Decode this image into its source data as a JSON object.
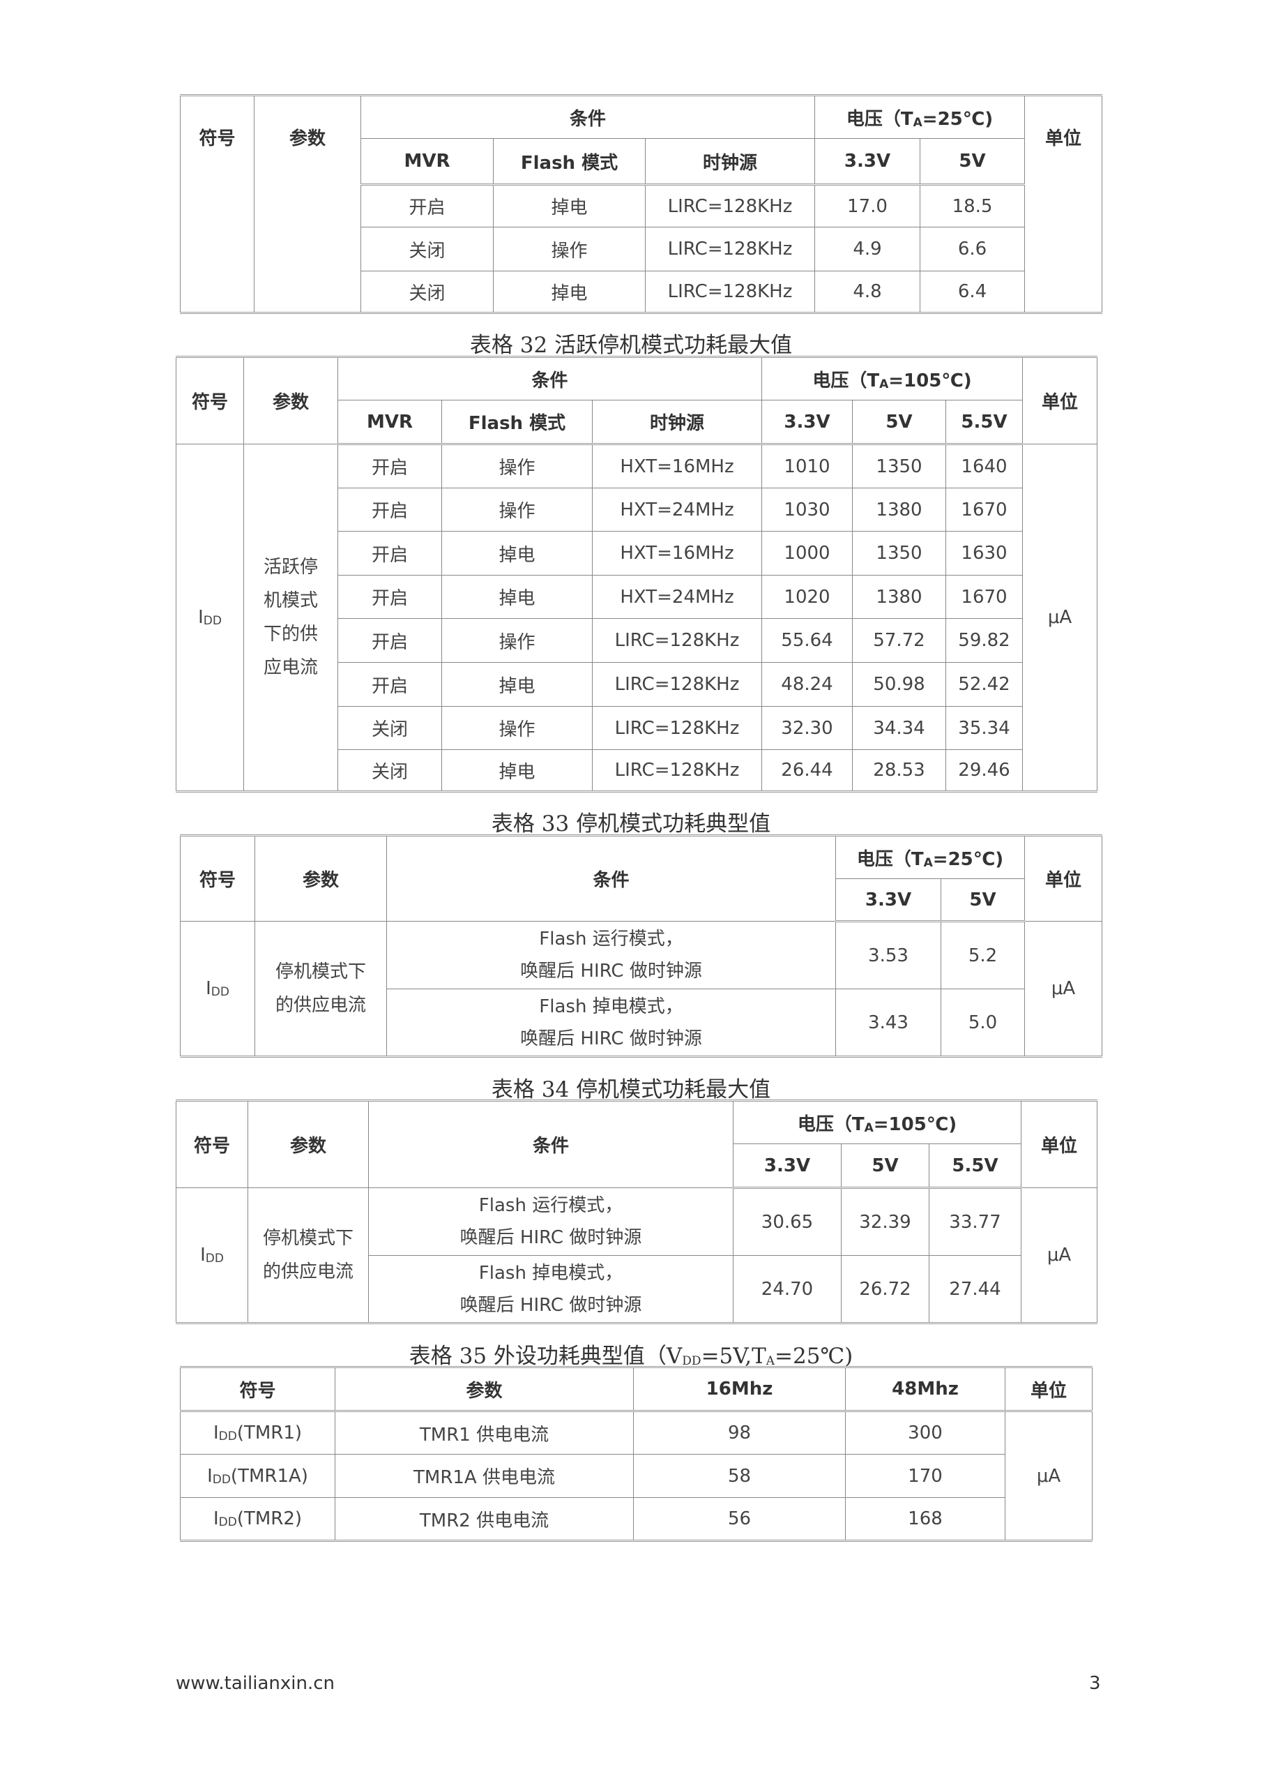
{
  "common": {
    "symbol": "符号",
    "param": "参数",
    "cond": "条件",
    "unit": "单位",
    "mvr": "MVR",
    "flash": "Flash 模式",
    "clock": "时钟源",
    "v33": "3.3V",
    "v5": "5V",
    "v55": "5.5V",
    "on": "开启",
    "off": "关闭",
    "op": "操作",
    "pd": "掉电",
    "lirc": "LIRC=128KHz",
    "hxt16": "HXT=16MHz",
    "hxt24": "HXT=24MHz",
    "ua": "μA",
    "idd_main": "I",
    "idd_sub": "DD",
    "volt_pre": "电压（T",
    "volt_sub": "A",
    "volt25": "=25℃)",
    "volt105": "=105℃)"
  },
  "table31": {
    "rows": [
      {
        "mvr": "开启",
        "flash": "掉电",
        "clock": "LIRC=128KHz",
        "v33": "17.0",
        "v5": "18.5"
      },
      {
        "mvr": "关闭",
        "flash": "操作",
        "clock": "LIRC=128KHz",
        "v33": "4.9",
        "v5": "6.6"
      },
      {
        "mvr": "关闭",
        "flash": "掉电",
        "clock": "LIRC=128KHz",
        "v33": "4.8",
        "v5": "6.4"
      }
    ]
  },
  "table32": {
    "caption": "表格 32 活跃停机模式功耗最大值",
    "param": "活跃停机模式下的供应电流",
    "rows": [
      {
        "mvr": "开启",
        "flash": "操作",
        "clock": "HXT=16MHz",
        "v33": "1010",
        "v5": "1350",
        "v55": "1640"
      },
      {
        "mvr": "开启",
        "flash": "操作",
        "clock": "HXT=24MHz",
        "v33": "1030",
        "v5": "1380",
        "v55": "1670"
      },
      {
        "mvr": "开启",
        "flash": "掉电",
        "clock": "HXT=16MHz",
        "v33": "1000",
        "v5": "1350",
        "v55": "1630"
      },
      {
        "mvr": "开启",
        "flash": "掉电",
        "clock": "HXT=24MHz",
        "v33": "1020",
        "v5": "1380",
        "v55": "1670"
      },
      {
        "mvr": "开启",
        "flash": "操作",
        "clock": "LIRC=128KHz",
        "v33": "55.64",
        "v5": "57.72",
        "v55": "59.82"
      },
      {
        "mvr": "开启",
        "flash": "掉电",
        "clock": "LIRC=128KHz",
        "v33": "48.24",
        "v5": "50.98",
        "v55": "52.42"
      },
      {
        "mvr": "关闭",
        "flash": "操作",
        "clock": "LIRC=128KHz",
        "v33": "32.30",
        "v5": "34.34",
        "v55": "35.34"
      },
      {
        "mvr": "关闭",
        "flash": "掉电",
        "clock": "LIRC=128KHz",
        "v33": "26.44",
        "v5": "28.53",
        "v55": "29.46"
      }
    ]
  },
  "table33": {
    "caption": "表格 33 停机模式功耗典型值",
    "param": "停机模式下的供应电流",
    "rows": [
      {
        "cond1": "Flash 运行模式，",
        "cond2": "唤醒后 HIRC 做时钟源",
        "v33": "3.53",
        "v5": "5.2"
      },
      {
        "cond1": "Flash 掉电模式，",
        "cond2": "唤醒后 HIRC 做时钟源",
        "v33": "3.43",
        "v5": "5.0"
      }
    ]
  },
  "table34": {
    "caption": "表格 34 停机模式功耗最大值",
    "param": "停机模式下的供应电流",
    "rows": [
      {
        "cond1": "Flash 运行模式，",
        "cond2": "唤醒后 HIRC 做时钟源",
        "v33": "30.65",
        "v5": "32.39",
        "v55": "33.77"
      },
      {
        "cond1": "Flash 掉电模式，",
        "cond2": "唤醒后 HIRC 做时钟源",
        "v33": "24.70",
        "v5": "26.72",
        "v55": "27.44"
      }
    ]
  },
  "table35": {
    "caption_pre": "表格 35 外设功耗典型值（V",
    "caption_sub1": "DD",
    "caption_mid": "=5V,T",
    "caption_sub2": "A",
    "caption_post": "=25℃)",
    "f16": "16Mhz",
    "f48": "48Mhz",
    "rows": [
      {
        "sym": "(TMR1)",
        "param": "TMR1 供电电流",
        "f16": "98",
        "f48": "300"
      },
      {
        "sym": "(TMR1A)",
        "param": "TMR1A 供电电流",
        "f16": "58",
        "f48": "170"
      },
      {
        "sym": "(TMR2)",
        "param": "TMR2 供电电流",
        "f16": "56",
        "f48": "168"
      }
    ]
  },
  "footer": {
    "url": "www.tailianxin.cn",
    "page": "3"
  }
}
